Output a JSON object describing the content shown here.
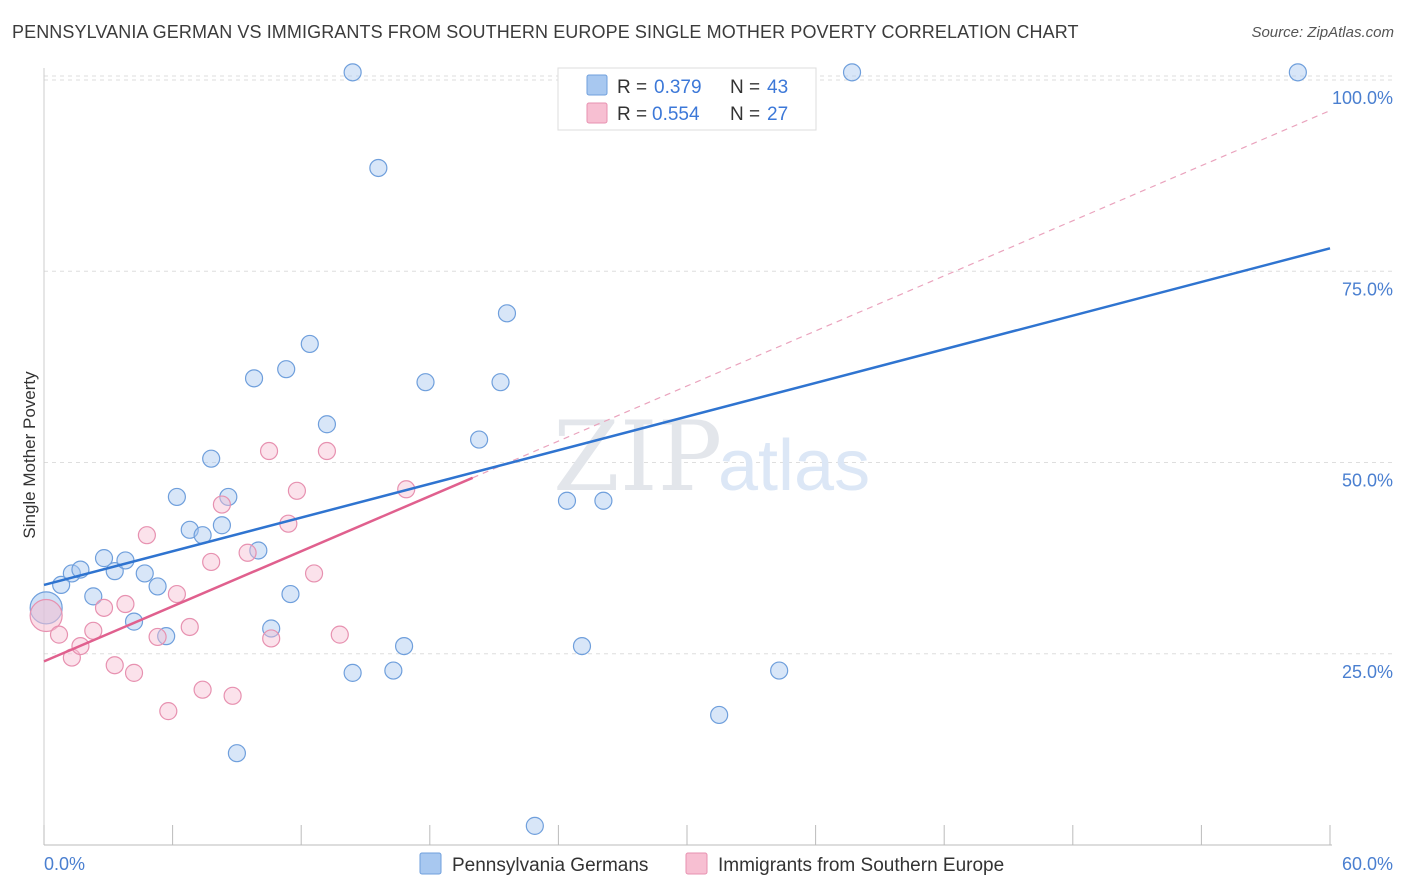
{
  "header": {
    "title": "PENNSYLVANIA GERMAN VS IMMIGRANTS FROM SOUTHERN EUROPE SINGLE MOTHER POVERTY CORRELATION CHART",
    "source": "Source: ZipAtlas.com"
  },
  "chart_data": {
    "type": "scatter",
    "title": "PENNSYLVANIA GERMAN VS IMMIGRANTS FROM SOUTHERN EUROPE SINGLE MOTHER POVERTY CORRELATION CHART",
    "ylabel": "Single Mother Poverty",
    "xlabel": "",
    "xlim": [
      0,
      60
    ],
    "ylim": [
      0,
      105
    ],
    "x_tick_labels": [
      "0.0%",
      "60.0%"
    ],
    "y_ticks": [
      25,
      50,
      75,
      100
    ],
    "y_tick_labels": [
      "25.0%",
      "50.0%",
      "75.0%",
      "100.0%"
    ],
    "watermark": {
      "part1": "ZIP",
      "part2": "atlas"
    },
    "legend": {
      "r_label": "R =",
      "n_label": "N =",
      "entries": [
        {
          "r": "0.379",
          "n": "43"
        },
        {
          "r": "0.554",
          "n": "27"
        }
      ]
    },
    "series": [
      {
        "name": "Pennsylvania Germans",
        "color": "#a8c8f0",
        "stroke": "#6f9fdc",
        "trend_color": "#2f74d0",
        "trend": {
          "x0": 0,
          "y0": 34.0,
          "x1": 60,
          "y1": 78.0
        },
        "points": [
          [
            0.1,
            31.0
          ],
          [
            0.8,
            34.0
          ],
          [
            1.3,
            35.5
          ],
          [
            1.7,
            36.0
          ],
          [
            2.3,
            32.5
          ],
          [
            2.8,
            37.5
          ],
          [
            3.3,
            35.8
          ],
          [
            3.8,
            37.2
          ],
          [
            4.2,
            29.2
          ],
          [
            4.7,
            35.5
          ],
          [
            5.3,
            33.8
          ],
          [
            5.7,
            27.3
          ],
          [
            6.2,
            45.5
          ],
          [
            6.8,
            41.2
          ],
          [
            7.4,
            40.5
          ],
          [
            7.8,
            50.5
          ],
          [
            8.3,
            41.8
          ],
          [
            8.6,
            45.5
          ],
          [
            9.0,
            12.0
          ],
          [
            9.8,
            61.0
          ],
          [
            10.0,
            38.5
          ],
          [
            10.6,
            28.3
          ],
          [
            11.3,
            62.2
          ],
          [
            11.5,
            32.8
          ],
          [
            12.4,
            65.5
          ],
          [
            13.2,
            55.0
          ],
          [
            14.4,
            101.0
          ],
          [
            14.4,
            22.5
          ],
          [
            15.6,
            88.5
          ],
          [
            16.3,
            22.8
          ],
          [
            16.8,
            26.0
          ],
          [
            17.8,
            60.5
          ],
          [
            20.3,
            53.0
          ],
          [
            21.3,
            60.5
          ],
          [
            21.6,
            69.5
          ],
          [
            22.9,
            2.5
          ],
          [
            24.4,
            45.0
          ],
          [
            25.1,
            26.0
          ],
          [
            26.1,
            45.0
          ],
          [
            31.5,
            17.0
          ],
          [
            34.3,
            22.8
          ],
          [
            37.7,
            101.0
          ],
          [
            58.5,
            101.0
          ]
        ]
      },
      {
        "name": "Immigrants from Southern Europe",
        "color": "#f7bfd2",
        "stroke": "#e791b0",
        "trend_color": "#e0608e",
        "trend": {
          "x0": 0,
          "y0": 24.0,
          "x1": 20,
          "y1": 48.0
        },
        "dashed_extension": {
          "x0": 20,
          "y0": 48.0,
          "x1": 60,
          "y1": 96.0
        },
        "points": [
          [
            0.1,
            30.0
          ],
          [
            0.7,
            27.5
          ],
          [
            1.3,
            24.5
          ],
          [
            1.7,
            26.0
          ],
          [
            2.3,
            28.0
          ],
          [
            2.8,
            31.0
          ],
          [
            3.3,
            23.5
          ],
          [
            3.8,
            31.5
          ],
          [
            4.2,
            22.5
          ],
          [
            4.8,
            40.5
          ],
          [
            5.3,
            27.2
          ],
          [
            5.8,
            17.5
          ],
          [
            6.2,
            32.8
          ],
          [
            6.8,
            28.5
          ],
          [
            7.4,
            20.3
          ],
          [
            7.8,
            37.0
          ],
          [
            8.3,
            44.5
          ],
          [
            8.8,
            19.5
          ],
          [
            9.5,
            38.2
          ],
          [
            10.5,
            51.5
          ],
          [
            10.6,
            27.0
          ],
          [
            11.4,
            42.0
          ],
          [
            11.8,
            46.3
          ],
          [
            12.6,
            35.5
          ],
          [
            13.2,
            51.5
          ],
          [
            13.8,
            27.5
          ],
          [
            16.9,
            46.5
          ]
        ]
      }
    ]
  }
}
